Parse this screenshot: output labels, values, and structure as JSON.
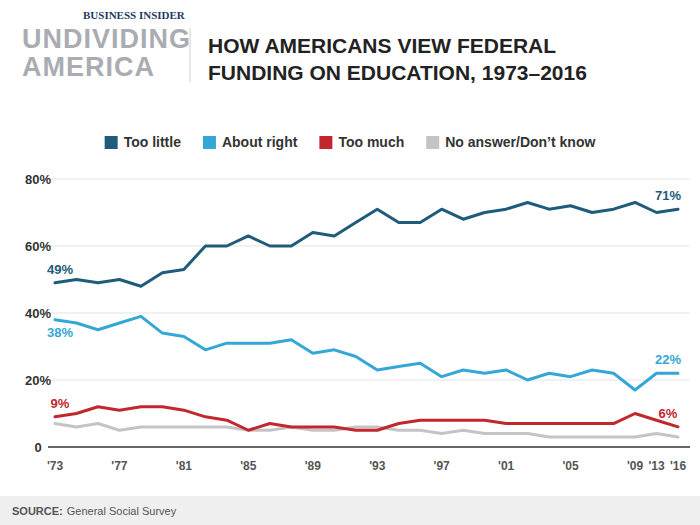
{
  "chart_data": {
    "type": "line",
    "title": "HOW AMERICANS VIEW FEDERAL FUNDING ON EDUCATION, 1973–2016",
    "brand": "BUSINESS INSIDER",
    "logo": [
      "UNDIVIDING",
      "AMERICA"
    ],
    "source_label": "SOURCE:",
    "source": "General Social Survey",
    "categories": [
      "'73",
      null,
      null,
      "'77",
      null,
      null,
      "'81",
      null,
      null,
      "'85",
      null,
      null,
      "'89",
      null,
      null,
      "'93",
      null,
      null,
      "'97",
      null,
      null,
      "'01",
      null,
      null,
      "'05",
      null,
      null,
      "'09",
      "'13",
      "'16"
    ],
    "series": [
      {
        "name": "Too little",
        "color": "#1f5b7a",
        "values": [
          49,
          50,
          49,
          50,
          48,
          52,
          53,
          60,
          60,
          63,
          60,
          60,
          64,
          63,
          67,
          71,
          67,
          67,
          71,
          68,
          70,
          71,
          73,
          71,
          72,
          70,
          71,
          73,
          70,
          71
        ],
        "value_labels": [
          "49%",
          null,
          null,
          null,
          null,
          null,
          null,
          null,
          null,
          null,
          null,
          null,
          null,
          null,
          null,
          null,
          null,
          null,
          null,
          null,
          null,
          null,
          null,
          null,
          null,
          null,
          null,
          null,
          null,
          "71%"
        ]
      },
      {
        "name": "About right",
        "color": "#35a7d6",
        "values": [
          38,
          37,
          35,
          37,
          39,
          34,
          33,
          29,
          31,
          31,
          31,
          32,
          28,
          29,
          27,
          23,
          24,
          25,
          21,
          23,
          22,
          23,
          20,
          22,
          21,
          23,
          22,
          17,
          22,
          22
        ],
        "value_labels": [
          "38%",
          null,
          null,
          null,
          null,
          null,
          null,
          null,
          null,
          null,
          null,
          null,
          null,
          null,
          null,
          null,
          null,
          null,
          null,
          null,
          null,
          null,
          null,
          null,
          null,
          null,
          null,
          null,
          null,
          "22%"
        ]
      },
      {
        "name": "Too much",
        "color": "#c1272d",
        "values": [
          9,
          10,
          12,
          11,
          12,
          12,
          11,
          9,
          8,
          5,
          7,
          6,
          6,
          6,
          5,
          5,
          7,
          8,
          8,
          8,
          8,
          7,
          7,
          7,
          7,
          7,
          7,
          10,
          8,
          6
        ],
        "value_labels": [
          "9%",
          null,
          null,
          null,
          null,
          null,
          null,
          null,
          null,
          null,
          null,
          null,
          null,
          null,
          null,
          null,
          null,
          null,
          null,
          null,
          null,
          null,
          null,
          null,
          null,
          null,
          null,
          null,
          null,
          "6%"
        ]
      },
      {
        "name": "No answer/Don’t know",
        "color": "#c4c4c4",
        "values": [
          7,
          6,
          7,
          5,
          6,
          6,
          6,
          6,
          6,
          5,
          5,
          6,
          5,
          5,
          6,
          6,
          5,
          5,
          4,
          5,
          4,
          4,
          4,
          3,
          3,
          3,
          3,
          3,
          4,
          3
        ]
      }
    ],
    "ylim": [
      0,
      80
    ],
    "yticks": [
      0,
      {
        "value": 20,
        "label": "20%"
      },
      {
        "value": 40,
        "label": "40%"
      },
      {
        "value": 60,
        "label": "60%"
      },
      {
        "value": 80,
        "label": "80%"
      }
    ],
    "grid": true,
    "legend": "top",
    "data_labels": true
  }
}
